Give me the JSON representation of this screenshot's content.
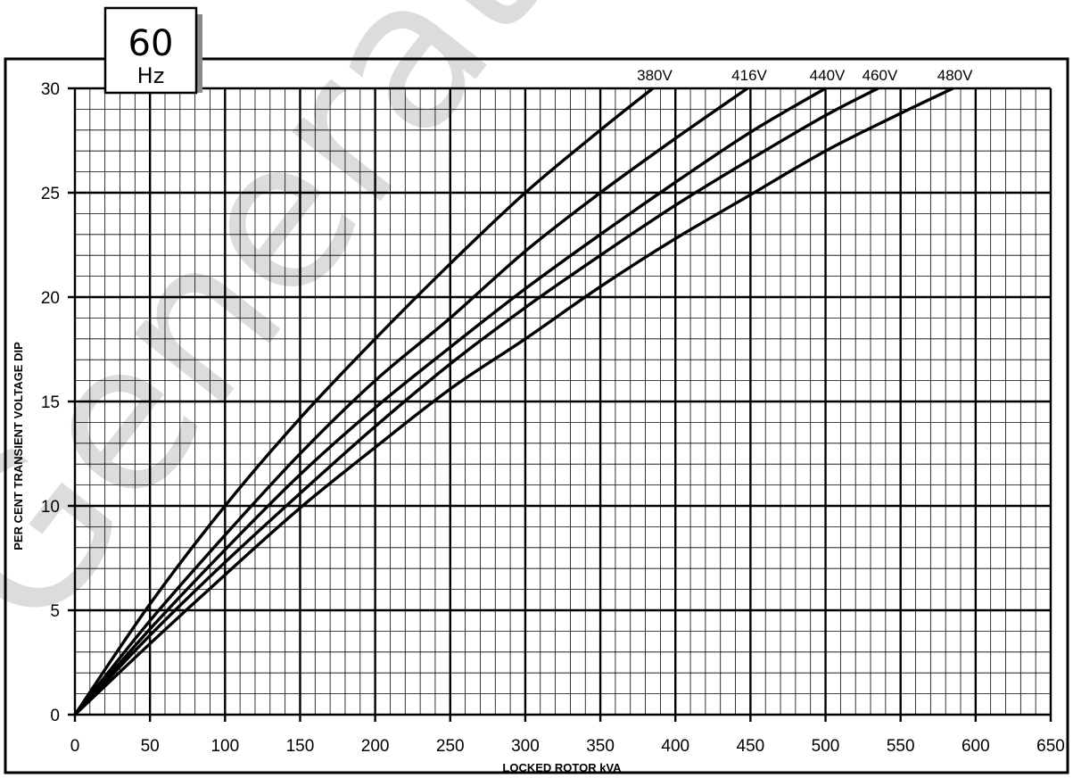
{
  "badge": {
    "value": "60",
    "unit": "Hz"
  },
  "watermark": "Generator S",
  "chart_data": {
    "type": "line",
    "xlabel": "LOCKED ROTOR kVA",
    "ylabel": "PER CENT TRANSIENT VOLTAGE DIP",
    "xlim": [
      0,
      650
    ],
    "ylim": [
      0,
      30
    ],
    "x_ticks": [
      0,
      50,
      100,
      150,
      200,
      250,
      300,
      350,
      400,
      450,
      500,
      550,
      600,
      650
    ],
    "y_ticks": [
      0,
      5,
      10,
      15,
      20,
      25,
      30
    ],
    "grid": {
      "major_x": 50,
      "minor_x": 10,
      "major_y": 5,
      "minor_y": 1
    },
    "series": [
      {
        "name": "380V",
        "points": [
          [
            0,
            0
          ],
          [
            50,
            5.3
          ],
          [
            100,
            10
          ],
          [
            150,
            14.2
          ],
          [
            200,
            18
          ],
          [
            250,
            21.6
          ],
          [
            300,
            25
          ],
          [
            350,
            28
          ],
          [
            385,
            30
          ]
        ]
      },
      {
        "name": "416V",
        "points": [
          [
            0,
            0
          ],
          [
            50,
            4.5
          ],
          [
            100,
            8.6
          ],
          [
            150,
            12.5
          ],
          [
            200,
            16
          ],
          [
            250,
            19
          ],
          [
            300,
            22.2
          ],
          [
            350,
            25
          ],
          [
            400,
            27.6
          ],
          [
            448,
            30
          ]
        ]
      },
      {
        "name": "440V",
        "points": [
          [
            0,
            0
          ],
          [
            50,
            4.1
          ],
          [
            100,
            7.9
          ],
          [
            150,
            11.5
          ],
          [
            200,
            14.7
          ],
          [
            250,
            17.6
          ],
          [
            300,
            20.4
          ],
          [
            350,
            23
          ],
          [
            400,
            25.5
          ],
          [
            450,
            27.9
          ],
          [
            500,
            30
          ]
        ]
      },
      {
        "name": "460V",
        "points": [
          [
            0,
            0
          ],
          [
            50,
            3.8
          ],
          [
            100,
            7.3
          ],
          [
            150,
            10.6
          ],
          [
            200,
            13.8
          ],
          [
            250,
            16.8
          ],
          [
            300,
            19.5
          ],
          [
            350,
            22
          ],
          [
            400,
            24.4
          ],
          [
            450,
            26.6
          ],
          [
            500,
            28.7
          ],
          [
            535,
            30
          ]
        ]
      },
      {
        "name": "480V",
        "points": [
          [
            0,
            0
          ],
          [
            50,
            3.4
          ],
          [
            100,
            6.7
          ],
          [
            150,
            9.9
          ],
          [
            200,
            12.8
          ],
          [
            250,
            15.6
          ],
          [
            300,
            18
          ],
          [
            350,
            20.5
          ],
          [
            400,
            22.8
          ],
          [
            450,
            24.9
          ],
          [
            500,
            27
          ],
          [
            550,
            28.8
          ],
          [
            585,
            30
          ]
        ]
      }
    ]
  }
}
